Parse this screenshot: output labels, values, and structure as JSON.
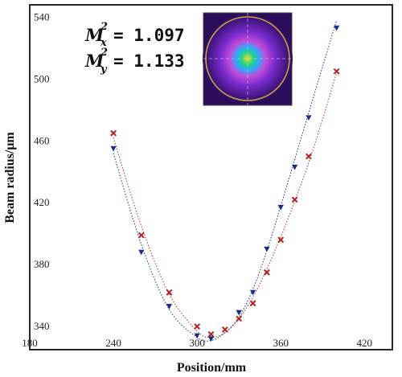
{
  "chart_data": {
    "type": "scatter",
    "xlabel": "Position/mm",
    "ylabel": "Beam radius/μm",
    "xlim": [
      180,
      440
    ],
    "ylim": [
      325,
      548
    ],
    "xticks": [
      180,
      240,
      300,
      360,
      420
    ],
    "yticks": [
      340,
      380,
      420,
      460,
      500,
      540
    ],
    "grid": false,
    "series": [
      {
        "name": "x",
        "color": "#b22020",
        "marker": "x",
        "x": [
          240,
          260,
          280,
          300,
          310,
          320,
          330,
          340,
          350,
          360,
          370,
          380,
          400
        ],
        "y": [
          465,
          399,
          362,
          340,
          335,
          338,
          345,
          355,
          375,
          396,
          422,
          450,
          505
        ]
      },
      {
        "name": "y",
        "color": "#1c2a8a",
        "marker": "triangle",
        "x": [
          240,
          260,
          280,
          300,
          310,
          330,
          340,
          350,
          360,
          370,
          380,
          400
        ],
        "y": [
          455,
          388,
          353,
          334,
          332,
          349,
          362,
          390,
          417,
          443,
          475,
          533
        ]
      }
    ],
    "fit_curves": [
      {
        "series": "x",
        "color": "#c04040",
        "x": [
          240,
          260,
          280,
          300,
          310,
          320,
          330,
          340,
          350,
          360,
          370,
          380,
          390,
          400
        ],
        "y": [
          462,
          405,
          361,
          337,
          333,
          336,
          345,
          359,
          377,
          398,
          421,
          446,
          474,
          504
        ]
      },
      {
        "series": "y",
        "color": "#3040a0",
        "x": [
          240,
          260,
          280,
          300,
          310,
          320,
          330,
          340,
          350,
          360,
          370,
          380,
          390,
          400
        ],
        "y": [
          452,
          393,
          351,
          333,
          331,
          336,
          346,
          364,
          389,
          418,
          448,
          478,
          508,
          538
        ]
      }
    ],
    "annotations": [
      {
        "label": "M",
        "subscript": "x",
        "value": "= 1.097"
      },
      {
        "label": "M",
        "subscript": "y",
        "value": "= 1.133"
      }
    ],
    "inset": {
      "description": "beam profile image",
      "colors": [
        "#2a0c5a",
        "#7a2bd0",
        "#c24cd8",
        "#2fa8ff",
        "#1fd38a",
        "#e6e01a"
      ],
      "circle_color": "#c8a048"
    }
  }
}
